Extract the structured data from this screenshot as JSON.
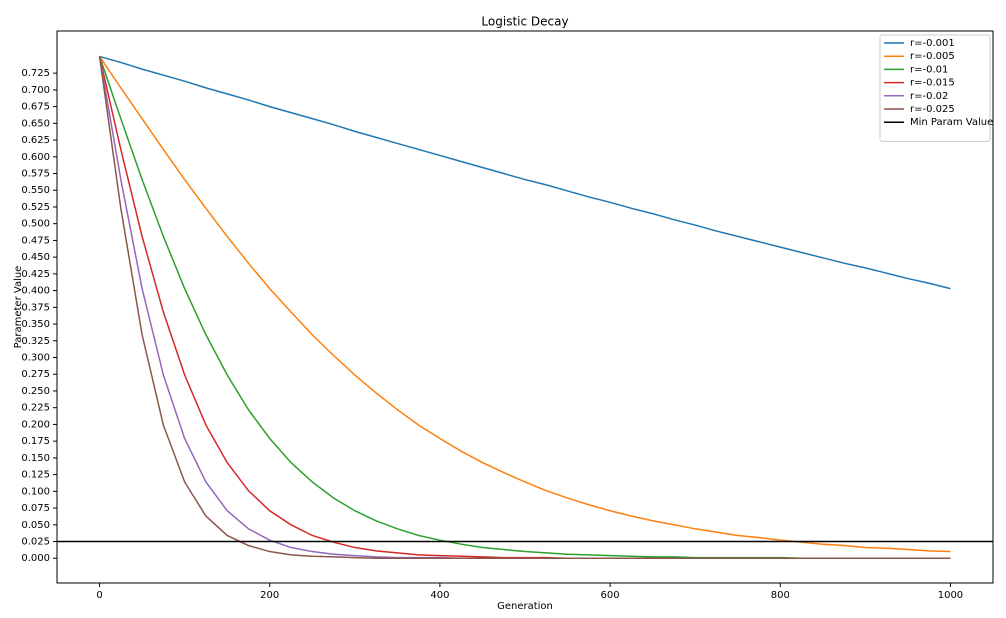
{
  "chart_data": {
    "type": "line",
    "title": "Logistic Decay",
    "x_label": "Generation",
    "y_label": "Parameter Value",
    "x": [
      0,
      25,
      50,
      75,
      100,
      125,
      150,
      175,
      200,
      225,
      250,
      275,
      300,
      325,
      350,
      375,
      400,
      425,
      450,
      475,
      500,
      525,
      550,
      575,
      600,
      625,
      650,
      675,
      700,
      725,
      750,
      775,
      800,
      825,
      850,
      875,
      900,
      925,
      950,
      975,
      1000
    ],
    "series": [
      {
        "name": "r=-0.001",
        "color": "#1f77b4",
        "values": [
          0.75,
          0.741,
          0.731,
          0.722,
          0.713,
          0.703,
          0.694,
          0.685,
          0.675,
          0.666,
          0.657,
          0.648,
          0.638,
          0.629,
          0.62,
          0.611,
          0.602,
          0.593,
          0.584,
          0.575,
          0.566,
          0.558,
          0.549,
          0.54,
          0.532,
          0.523,
          0.515,
          0.506,
          0.498,
          0.489,
          0.481,
          0.473,
          0.465,
          0.457,
          0.449,
          0.441,
          0.434,
          0.426,
          0.418,
          0.411,
          0.403
        ]
      },
      {
        "name": "r=-0.005",
        "color": "#ff7f0e",
        "values": [
          0.75,
          0.703,
          0.657,
          0.611,
          0.566,
          0.523,
          0.481,
          0.441,
          0.403,
          0.368,
          0.334,
          0.303,
          0.274,
          0.247,
          0.222,
          0.199,
          0.179,
          0.16,
          0.143,
          0.128,
          0.114,
          0.101,
          0.09,
          0.08,
          0.071,
          0.063,
          0.056,
          0.05,
          0.044,
          0.039,
          0.034,
          0.031,
          0.027,
          0.024,
          0.021,
          0.019,
          0.016,
          0.015,
          0.013,
          0.011,
          0.01
        ]
      },
      {
        "name": "r=-0.01",
        "color": "#2ca02c",
        "values": [
          0.75,
          0.657,
          0.566,
          0.481,
          0.403,
          0.334,
          0.274,
          0.222,
          0.179,
          0.143,
          0.114,
          0.09,
          0.071,
          0.056,
          0.044,
          0.034,
          0.027,
          0.021,
          0.016,
          0.013,
          0.01,
          0.008,
          0.006,
          0.005,
          0.004,
          0.003,
          0.002,
          0.002,
          0.001,
          0.001,
          0.001,
          0.001,
          0.001,
          0,
          0,
          0,
          0,
          0,
          0,
          0,
          0
        ]
      },
      {
        "name": "r=-0.015",
        "color": "#d62728",
        "values": [
          0.75,
          0.611,
          0.481,
          0.368,
          0.274,
          0.199,
          0.143,
          0.101,
          0.071,
          0.05,
          0.034,
          0.024,
          0.016,
          0.011,
          0.008,
          0.005,
          0.004,
          0.003,
          0.002,
          0.001,
          0.001,
          0.001,
          0,
          0,
          0,
          0,
          0,
          0,
          0,
          0,
          0,
          0,
          0,
          0,
          0,
          0,
          0,
          0,
          0,
          0,
          0
        ]
      },
      {
        "name": "r=-0.02",
        "color": "#9467bd",
        "values": [
          0.75,
          0.566,
          0.403,
          0.274,
          0.179,
          0.114,
          0.071,
          0.044,
          0.027,
          0.016,
          0.01,
          0.006,
          0.004,
          0.002,
          0.001,
          0.001,
          0.001,
          0,
          0,
          0,
          0,
          0,
          0,
          0,
          0,
          0,
          0,
          0,
          0,
          0,
          0,
          0,
          0,
          0,
          0,
          0,
          0,
          0,
          0,
          0,
          0
        ]
      },
      {
        "name": "r=-0.025",
        "color": "#8c564b",
        "values": [
          0.75,
          0.523,
          0.334,
          0.199,
          0.114,
          0.063,
          0.034,
          0.019,
          0.01,
          0.005,
          0.003,
          0.002,
          0.001,
          0,
          0,
          0,
          0,
          0,
          0,
          0,
          0,
          0,
          0,
          0,
          0,
          0,
          0,
          0,
          0,
          0,
          0,
          0,
          0,
          0,
          0,
          0,
          0,
          0,
          0,
          0,
          0
        ]
      }
    ],
    "min_line": {
      "name": "Min Param Value",
      "color": "#000000",
      "y": 0.025
    },
    "xlim": [
      -50,
      1050
    ],
    "xticks": [
      0,
      200,
      400,
      600,
      800,
      1000
    ],
    "ylim": [
      -0.037,
      0.788
    ],
    "yticks": [
      {
        "value": 0,
        "label": "0.000"
      },
      0.025,
      {
        "value": 0.05,
        "label": "0.050"
      },
      0.075,
      {
        "value": 0.1,
        "label": "0.100"
      },
      0.125,
      {
        "value": 0.15,
        "label": "0.150"
      },
      0.175,
      {
        "value": 0.2,
        "label": "0.200"
      },
      0.225,
      {
        "value": 0.25,
        "label": "0.250"
      },
      0.275,
      {
        "value": 0.3,
        "label": "0.300"
      },
      0.325,
      {
        "value": 0.35,
        "label": "0.350"
      },
      0.375,
      {
        "value": 0.4,
        "label": "0.400"
      },
      0.425,
      {
        "value": 0.45,
        "label": "0.450"
      },
      0.475,
      {
        "value": 0.5,
        "label": "0.500"
      },
      0.525,
      {
        "value": 0.55,
        "label": "0.550"
      },
      0.575,
      {
        "value": 0.6,
        "label": "0.600"
      },
      0.625,
      {
        "value": 0.65,
        "label": "0.650"
      },
      0.675,
      {
        "value": 0.7,
        "label": "0.700"
      },
      0.725
    ],
    "grid": false,
    "legend": "upper right"
  }
}
